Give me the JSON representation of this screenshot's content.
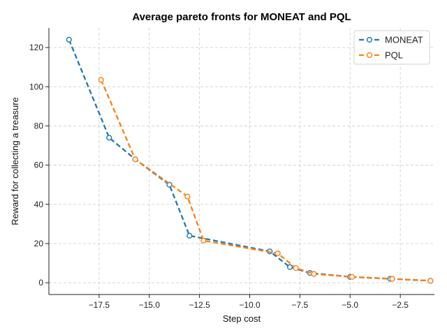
{
  "chart_data": {
    "type": "line",
    "title": "Average pareto fronts for MONEAT and PQL",
    "xlabel": "Step cost",
    "ylabel": "Reward for collecting a treasure",
    "xlim": [
      -20,
      -0.8
    ],
    "ylim": [
      -6,
      130
    ],
    "xticks": [
      -17.5,
      -15.0,
      -12.5,
      -10.0,
      -7.5,
      -5.0,
      -2.5
    ],
    "xtick_labels": [
      "−17.5",
      "−15.0",
      "−12.5",
      "−10.0",
      "−7.5",
      "−5.0",
      "−2.5"
    ],
    "yticks": [
      0,
      20,
      40,
      60,
      80,
      100,
      120
    ],
    "ytick_labels": [
      "0",
      "20",
      "40",
      "60",
      "80",
      "100",
      "120"
    ],
    "grid": true,
    "legend_position": "top-right",
    "series": [
      {
        "name": "MONEAT",
        "color": "#1f77b4",
        "x": [
          -19,
          -17,
          -15.7,
          -14,
          -13,
          -9,
          -8,
          -7,
          -5,
          -3,
          -1
        ],
        "y": [
          124,
          74,
          63,
          50,
          24,
          16,
          8,
          5,
          3,
          2,
          1
        ]
      },
      {
        "name": "PQL",
        "color": "#ff7f0e",
        "x": [
          -17.4,
          -15.7,
          -13.1,
          -12.3,
          -8.6,
          -7.7,
          -6.8,
          -4.9,
          -2.9,
          -1
        ],
        "y": [
          103.5,
          63,
          44,
          21.5,
          15,
          7.5,
          4.5,
          3,
          2,
          1
        ]
      }
    ]
  }
}
